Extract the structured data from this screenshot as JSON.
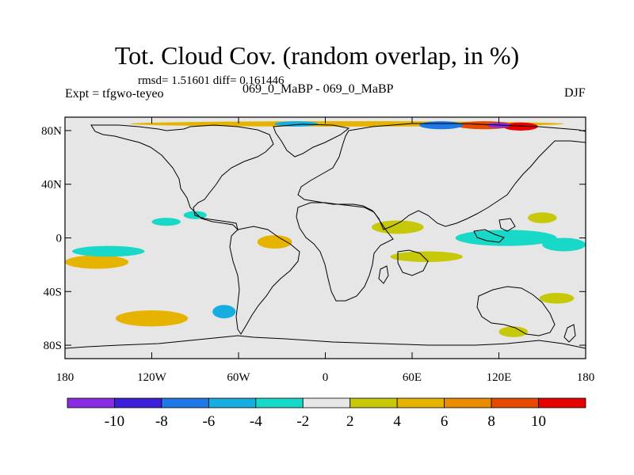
{
  "title": "Tot. Cloud Cov. (random overlap, in %)",
  "stats": "rmsd= 1.51601 diff= 0.161446",
  "experiment": "Expt = tfgwo-teyeo",
  "comparison": "069_0_MaBP - 069_0_MaBP",
  "season": "DJF",
  "map": {
    "projection": "cylindrical equidistant",
    "lon_range": [
      -180,
      180
    ],
    "lat_range": [
      -90,
      90
    ],
    "y_ticks": [
      {
        "lat": 80,
        "label": "80N"
      },
      {
        "lat": 40,
        "label": "40N"
      },
      {
        "lat": 0,
        "label": "0"
      },
      {
        "lat": -40,
        "label": "40S"
      },
      {
        "lat": -80,
        "label": "80S"
      }
    ],
    "x_ticks": [
      {
        "lon": -180,
        "label": "180"
      },
      {
        "lon": -120,
        "label": "120W"
      },
      {
        "lon": -60,
        "label": "60W"
      },
      {
        "lon": 0,
        "label": "0"
      },
      {
        "lon": 60,
        "label": "60E"
      },
      {
        "lon": 120,
        "label": "120E"
      },
      {
        "lon": 180,
        "label": "180"
      }
    ],
    "background_color": "#e6e6e6",
    "coastline_color": "#000000"
  },
  "colorbar": {
    "colors": [
      "#8a2be2",
      "#3c1ed8",
      "#1e78e6",
      "#16aee0",
      "#18d8c8",
      "#e6e6e6",
      "#c8c80a",
      "#e6b400",
      "#ea8c00",
      "#e64a00",
      "#e60000"
    ],
    "labels": [
      "-10",
      "-8",
      "-6",
      "-4",
      "-2",
      "2",
      "4",
      "6",
      "8",
      "10"
    ]
  },
  "anomaly_patches": [
    {
      "name": "arctic-band",
      "lon": 15,
      "lat": 85,
      "rlon": 150,
      "rlat": 2,
      "level": "4"
    },
    {
      "name": "arctic-pos-1",
      "lon": 110,
      "lat": 84,
      "rlon": 20,
      "rlat": 3,
      "level": "8"
    },
    {
      "name": "arctic-pos-2",
      "lon": 135,
      "lat": 83,
      "rlon": 12,
      "rlat": 3,
      "level": "10"
    },
    {
      "name": "arctic-neg-1",
      "lon": 80,
      "lat": 84,
      "rlon": 15,
      "rlat": 3,
      "level": "-6"
    },
    {
      "name": "arctic-neg-2",
      "lon": 120,
      "lat": 84,
      "rlon": 8,
      "rlat": 2,
      "level": "-10"
    },
    {
      "name": "arctic-neg-3",
      "lon": -20,
      "lat": 85,
      "rlon": 15,
      "rlat": 2,
      "level": "-4"
    },
    {
      "name": "pac-tropic-neg",
      "lon": 125,
      "lat": 0,
      "rlon": 35,
      "rlat": 6,
      "level": "-2"
    },
    {
      "name": "pac-tropic-neg-2",
      "lon": 165,
      "lat": -5,
      "rlon": 15,
      "rlat": 5,
      "level": "-2"
    },
    {
      "name": "spcz-pos",
      "lon": -158,
      "lat": -18,
      "rlon": 22,
      "rlat": 5,
      "level": "4"
    },
    {
      "name": "sepac-neg",
      "lon": -150,
      "lat": -10,
      "rlon": 25,
      "rlat": 4,
      "level": "-2"
    },
    {
      "name": "atl-pos",
      "lon": -35,
      "lat": -3,
      "rlon": 12,
      "rlat": 5,
      "level": "4"
    },
    {
      "name": "africa-pos",
      "lon": 50,
      "lat": 8,
      "rlon": 18,
      "rlat": 5,
      "level": "2"
    },
    {
      "name": "indian-pos",
      "lon": 70,
      "lat": -14,
      "rlon": 25,
      "rlat": 4,
      "level": "2"
    },
    {
      "name": "so-pos-1",
      "lon": -120,
      "lat": -60,
      "rlon": 25,
      "rlat": 6,
      "level": "4"
    },
    {
      "name": "so-neg-1",
      "lon": -70,
      "lat": -55,
      "rlon": 8,
      "rlat": 5,
      "level": "-4"
    },
    {
      "name": "na-neg",
      "lon": -110,
      "lat": 12,
      "rlon": 10,
      "rlat": 3,
      "level": "-2"
    },
    {
      "name": "mid-atl-neg",
      "lon": -90,
      "lat": 17,
      "rlon": 8,
      "rlat": 3,
      "level": "-2"
    },
    {
      "name": "wpac-pos",
      "lon": 150,
      "lat": 15,
      "rlon": 10,
      "rlat": 4,
      "level": "2"
    },
    {
      "name": "so-pos-2",
      "lon": 160,
      "lat": -45,
      "rlon": 12,
      "rlat": 4,
      "level": "2"
    },
    {
      "name": "so-pos-3",
      "lon": 130,
      "lat": -70,
      "rlon": 10,
      "rlat": 4,
      "level": "2"
    }
  ]
}
